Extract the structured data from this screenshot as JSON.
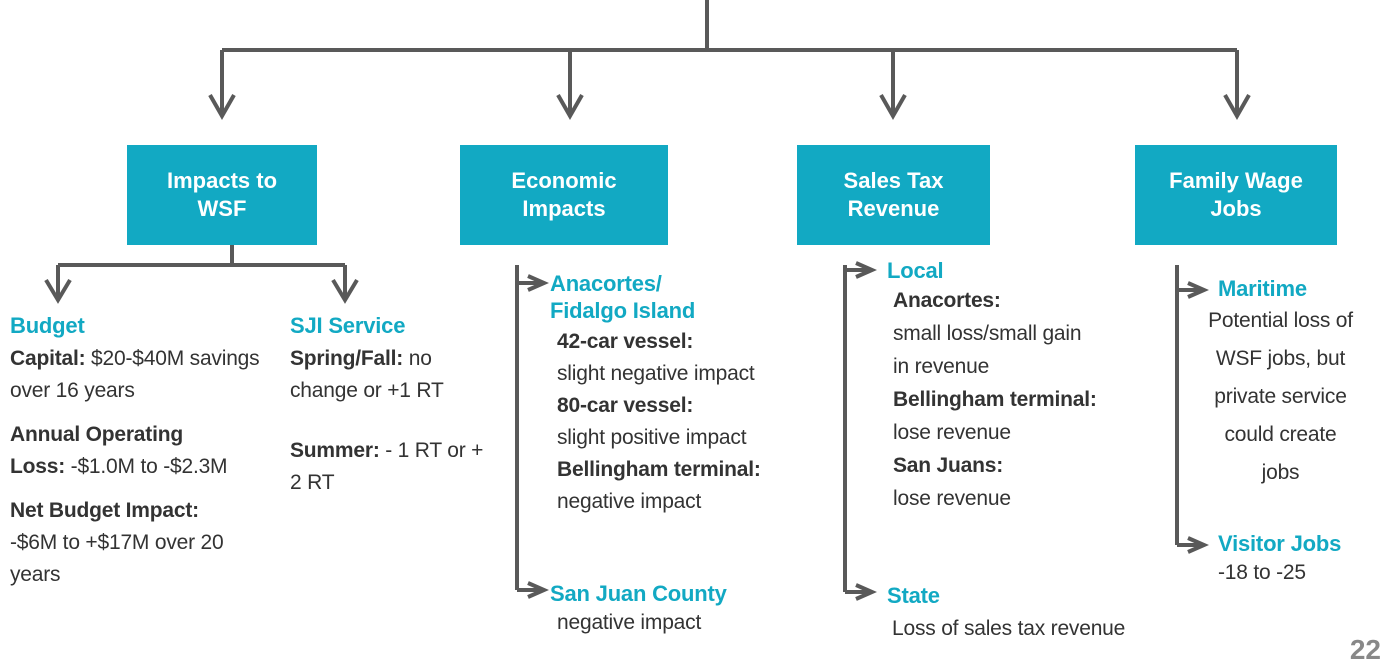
{
  "nodes": [
    {
      "label": [
        "Impacts to",
        "WSF"
      ]
    },
    {
      "label": [
        "Economic",
        "Impacts"
      ]
    },
    {
      "label": [
        "Sales Tax",
        "Revenue"
      ]
    },
    {
      "label": [
        "Family Wage",
        "Jobs"
      ]
    }
  ],
  "groups": {
    "budget": {
      "heading": "Budget",
      "items": [
        {
          "term": "Capital:",
          "text": " $20-$40M savings over 16 years"
        },
        {
          "term": "Annual Operating Loss:",
          "text": " -$1.0M to -$2.3M"
        },
        {
          "term": "Net Budget Impact:",
          "text": " -$6M to +$17M over 20 years"
        }
      ]
    },
    "sji": {
      "heading": "SJI Service",
      "items": [
        {
          "term": "Spring/Fall:",
          "text": " no change or +1 RT"
        },
        {
          "term": "Summer:",
          "text": " - 1 RT or + 2 RT"
        }
      ]
    },
    "anacortes": {
      "heading": [
        "Anacortes/",
        "Fidalgo Island"
      ],
      "items": [
        {
          "term": "42-car vessel:",
          "text": "slight negative impact"
        },
        {
          "term": "80-car vessel:",
          "text": "slight positive impact"
        },
        {
          "term": "Bellingham terminal:",
          "text": "negative impact"
        }
      ]
    },
    "sanjuan": {
      "heading": "San Juan County",
      "text": "negative impact"
    },
    "local": {
      "heading": "Local",
      "items": [
        {
          "term": "Anacortes:",
          "text": "small loss/small gain in revenue"
        },
        {
          "term": "Bellingham terminal:",
          "text": "lose revenue"
        },
        {
          "term": "San Juans:",
          "text": "lose revenue"
        }
      ]
    },
    "state": {
      "heading": "State",
      "text": "Loss of sales tax revenue"
    },
    "maritime": {
      "heading": "Maritime",
      "text": "Potential loss of WSF jobs, but private service could create jobs"
    },
    "visitor": {
      "heading": "Visitor Jobs",
      "text": "-18 to -25"
    }
  },
  "page_number": "22"
}
